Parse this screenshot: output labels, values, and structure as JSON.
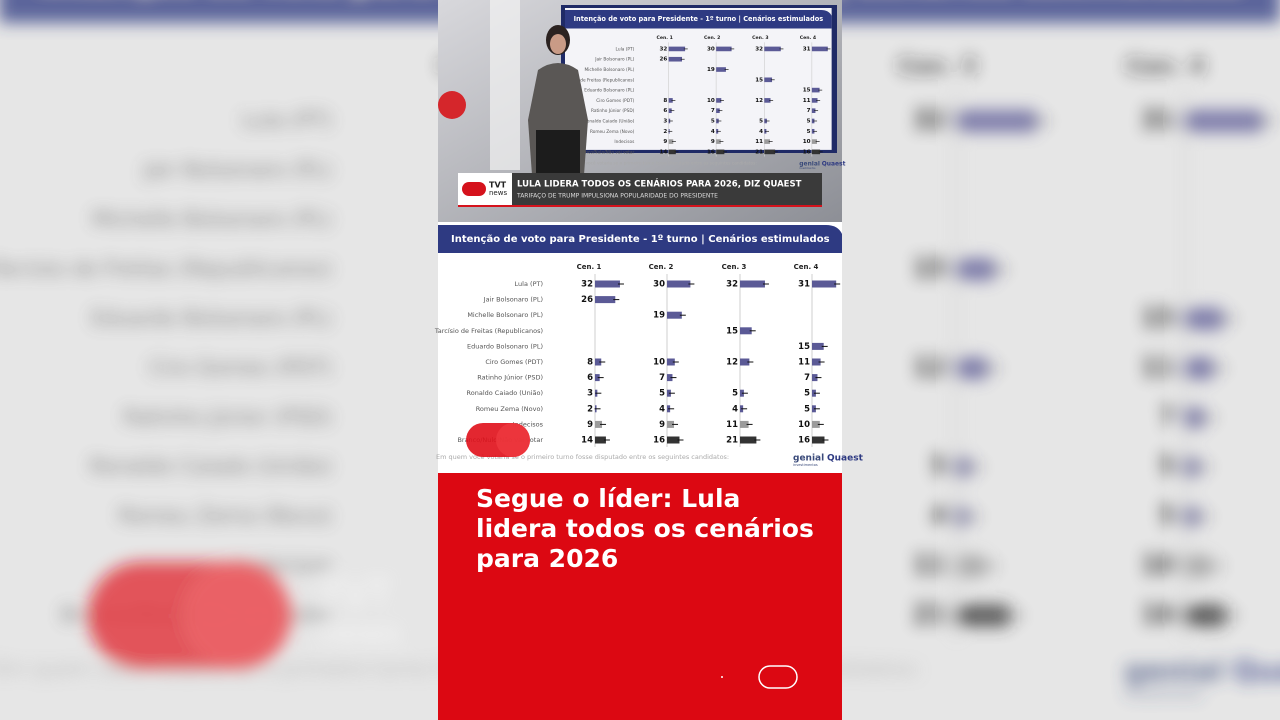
{
  "video_banner": {
    "brand": "TVT",
    "brand_sub": "news",
    "headline": "LULA LIDERA TODOS OS CENÁRIOS PARA 2026, DIZ QUAEST",
    "subheadline": "TARIFAÇO DE TRUMP IMPULSIONA POPULARIDADE DO PRESIDENTE"
  },
  "chart": {
    "type": "bar",
    "title": "Intenção de voto para Presidente - 1º turno | Cenários estimulados",
    "categories": [
      "Lula (PT)",
      "Jair Bolsonaro (PL)",
      "Michelle Bolsonaro (PL)",
      "Tarcísio de Freitas (Republicanos)",
      "Eduardo Bolsonaro (PL)",
      "Ciro Gomes (PDT)",
      "Ratinho Júnior (PSD)",
      "Ronaldo Caiado (União)",
      "Romeu Zema (Novo)",
      "Indecisos",
      "Branco/Nulo/Não vai votar"
    ],
    "series": [
      {
        "name": "Cen. 1",
        "values": [
          32,
          26,
          null,
          null,
          null,
          8,
          6,
          3,
          2,
          9,
          14
        ]
      },
      {
        "name": "Cen. 2",
        "values": [
          30,
          null,
          19,
          null,
          null,
          10,
          7,
          5,
          4,
          9,
          16
        ]
      },
      {
        "name": "Cen. 3",
        "values": [
          32,
          null,
          null,
          15,
          null,
          12,
          null,
          5,
          4,
          11,
          21
        ]
      },
      {
        "name": "Cen. 4",
        "values": [
          31,
          null,
          null,
          null,
          15,
          11,
          7,
          5,
          5,
          10,
          16
        ]
      }
    ],
    "row_colors": [
      "#5b5a96",
      "#5b5a96",
      "#5b5a96",
      "#5b5a96",
      "#5b5a96",
      "#5b5a96",
      "#5b5a96",
      "#5b5a96",
      "#5b5a96",
      "#9b9b9b",
      "#333333"
    ],
    "footnote": "Em quem você votaria se o primeiro turno fosse disputado entre os seguintes candidatos:",
    "source": "genial",
    "source_sub": "investimentos",
    "partner": "Quaest"
  },
  "caption": "Segue o líder: Lula lidera todos os cenários para 2026"
}
